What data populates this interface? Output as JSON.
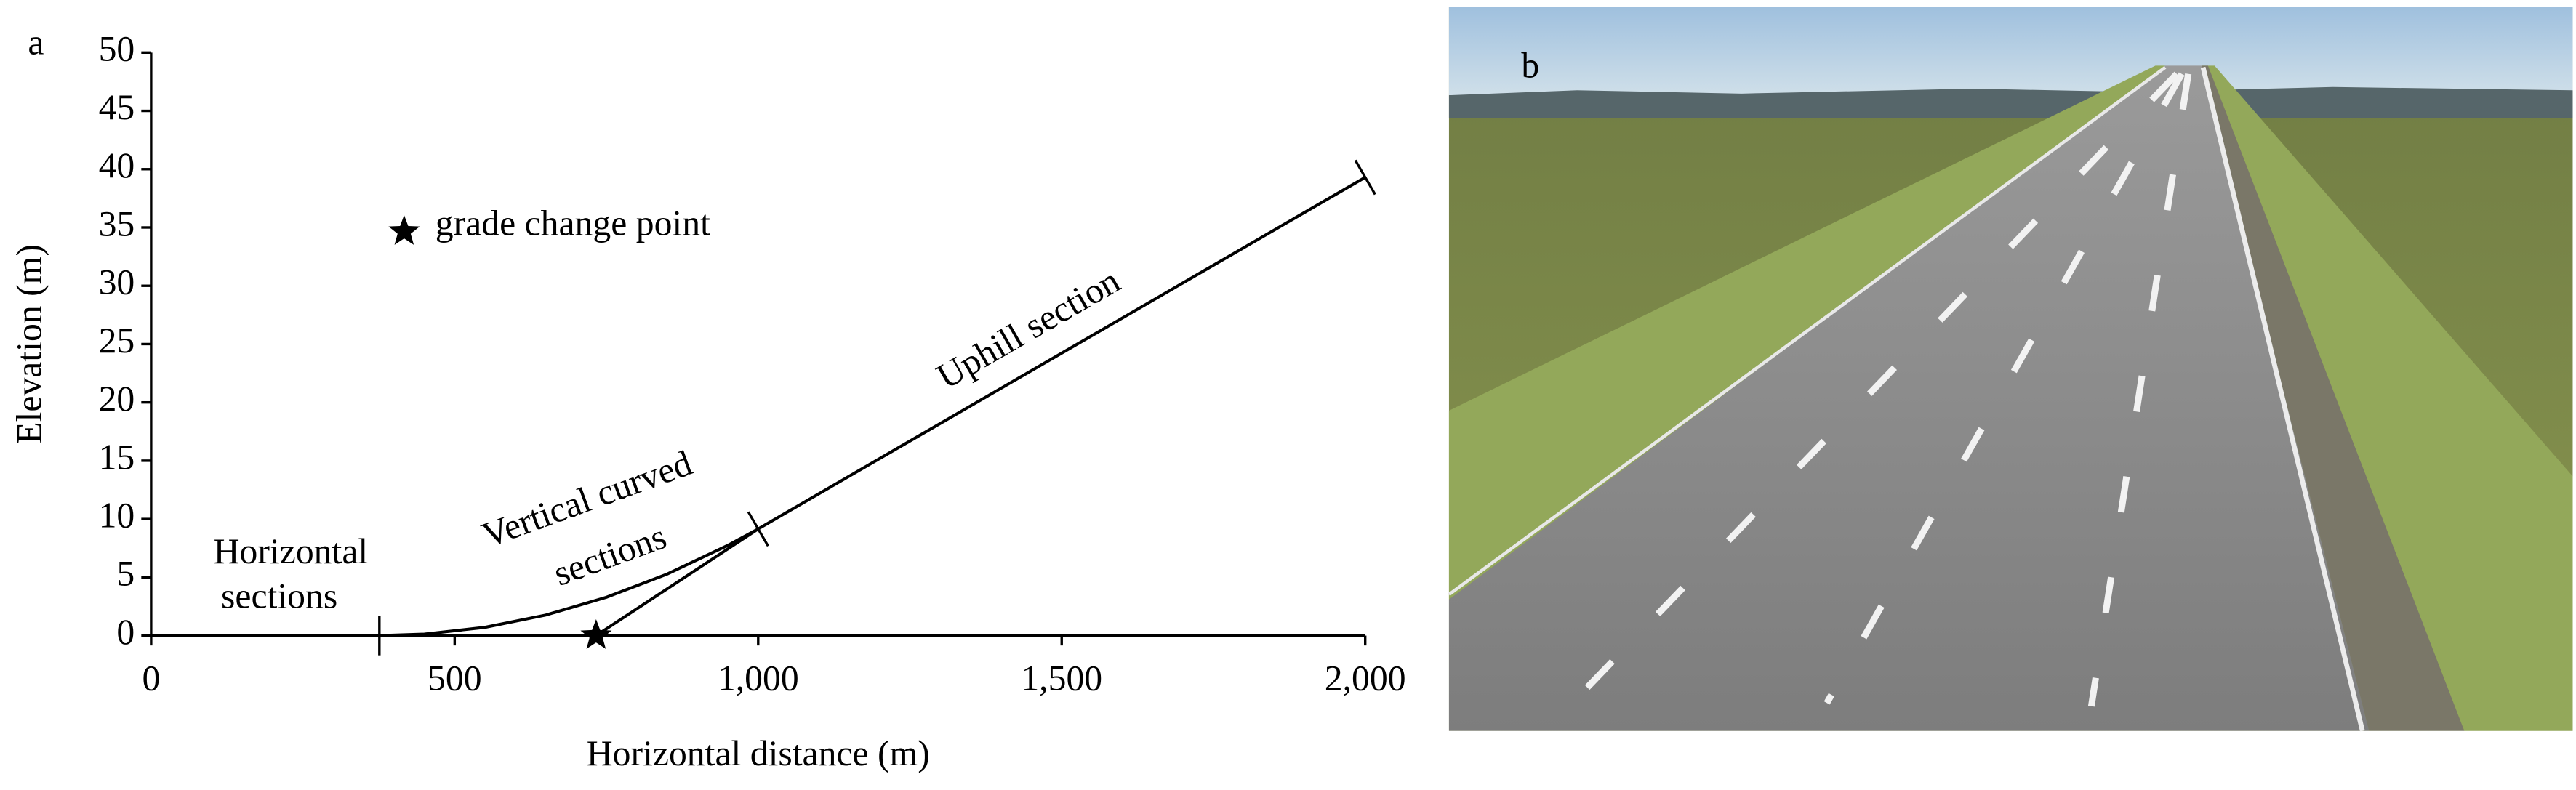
{
  "chart_data": {
    "type": "line",
    "panel_label": "a",
    "x_label": "Horizontal distance (m)",
    "y_label": "Elevation (m)",
    "xlim": [
      0,
      2000
    ],
    "ylim": [
      0,
      50
    ],
    "xticks": [
      0,
      500,
      {
        "value": 1000,
        "label": "1,000"
      },
      {
        "value": 1500,
        "label": "1,500"
      },
      {
        "value": 2000,
        "label": "2,000"
      }
    ],
    "yticks": [
      0,
      5,
      10,
      15,
      20,
      25,
      30,
      35,
      40,
      45,
      50
    ],
    "series": [
      {
        "color": "#000000",
        "x": [
          0,
          376
        ],
        "values": [
          0,
          0
        ]
      },
      {
        "color": "#000000",
        "x": [
          376,
          450,
          550,
          650,
          750,
          850,
          950,
          1000
        ],
        "values": [
          0,
          0.13,
          0.71,
          1.76,
          3.29,
          5.28,
          7.74,
          9.15
        ]
      },
      {
        "color": "#000000",
        "x": [
          1000,
          2000
        ],
        "values": [
          9.15,
          39.3
        ]
      },
      {
        "color": "#000000",
        "x": [
          733,
          1000
        ],
        "values": [
          0,
          9.15
        ]
      }
    ],
    "grade_change_point": {
      "x": 733,
      "y": 0,
      "label": "grade change point"
    },
    "annotations": [
      [
        "Horizontal",
        "sections"
      ],
      [
        "Vertical curved",
        "sections"
      ],
      [
        "Uphill section"
      ]
    ]
  },
  "image": {
    "panel_label": "b"
  }
}
